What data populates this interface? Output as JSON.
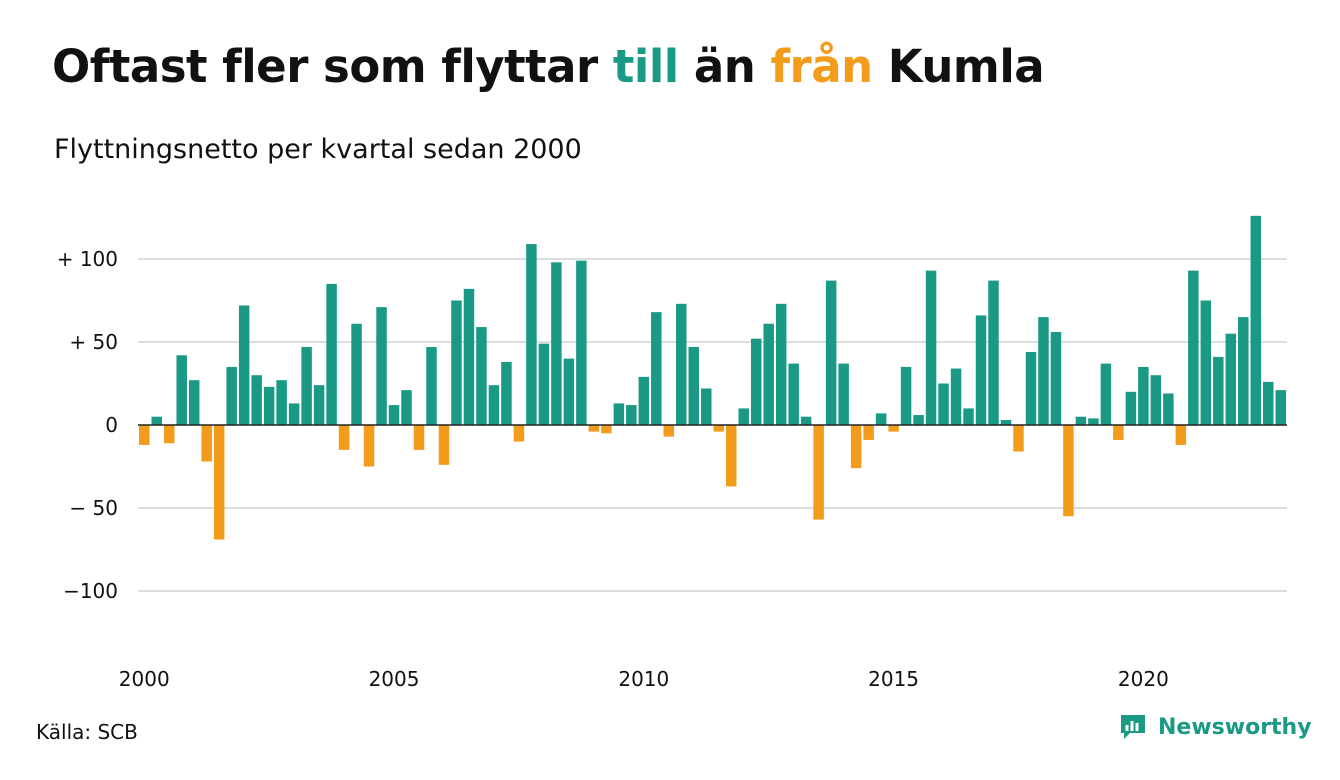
{
  "header": {
    "title_part1": "Oftast fler som flyttar ",
    "title_till": "till",
    "title_part2": " än ",
    "title_fran": "från",
    "title_part3": " Kumla",
    "subtitle": "Flyttningsnetto per kvartal sedan 2000"
  },
  "footer": {
    "source": "Källa: SCB",
    "brand": "Newsworthy",
    "brand_icon": "chart-logo-icon"
  },
  "colors": {
    "positive": "#1a9985",
    "negative": "#f39c1b",
    "grid": "#dddddd",
    "title_till": "#1a9985",
    "title_fran": "#f39c1b"
  },
  "chart_data": {
    "type": "bar",
    "title": "Oftast fler som flyttar till än från Kumla",
    "subtitle": "Flyttningsnetto per kvartal sedan 2000",
    "xlabel": "",
    "ylabel": "",
    "x_start": "2000 Q1",
    "frequency": "quarterly",
    "ylim": [
      -125,
      135
    ],
    "yticks": [
      100,
      50,
      0,
      -50,
      -100
    ],
    "ytick_labels": [
      "+ 100",
      "+  50",
      "0",
      "− 50",
      "−100"
    ],
    "xticks": [
      "2000",
      "2005",
      "2010",
      "2015",
      "2020"
    ],
    "grid": true,
    "legend": "none",
    "values": [
      -12,
      5,
      -11,
      42,
      27,
      -22,
      -69,
      35,
      72,
      30,
      23,
      27,
      13,
      47,
      24,
      85,
      -15,
      61,
      -25,
      71,
      12,
      21,
      -15,
      47,
      -24,
      75,
      82,
      59,
      24,
      38,
      -10,
      109,
      49,
      98,
      40,
      99,
      -4,
      -5,
      13,
      12,
      29,
      68,
      -7,
      73,
      47,
      22,
      -4,
      -37,
      10,
      52,
      61,
      73,
      37,
      5,
      -57,
      87,
      37,
      -26,
      -9,
      7,
      -4,
      35,
      6,
      93,
      25,
      34,
      10,
      66,
      87,
      3,
      -16,
      44,
      65,
      56,
      -55,
      5,
      4,
      37,
      -9,
      20,
      35,
      30,
      19,
      -12,
      93,
      75,
      41,
      55,
      65,
      126,
      26,
      21
    ]
  }
}
